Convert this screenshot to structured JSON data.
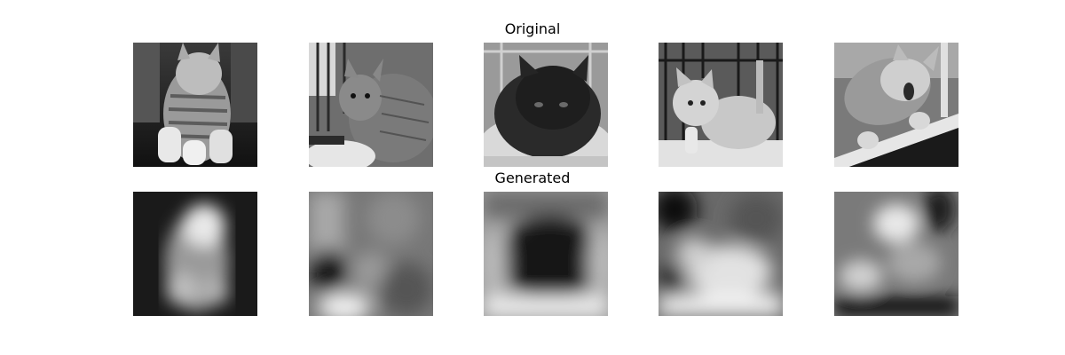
{
  "figure": {
    "rows": [
      {
        "title": "Original",
        "images": [
          {
            "label": "cat sitting upright, grayscale"
          },
          {
            "label": "tabby cat on a cushion, grayscale"
          },
          {
            "label": "black cat lying in a bed, grayscale"
          },
          {
            "label": "white kitten in a cage, grayscale"
          },
          {
            "label": "cat reaching over a ledge, grayscale"
          }
        ]
      },
      {
        "title": "Generated",
        "images": [
          {
            "label": "blurry reconstruction of cat 1"
          },
          {
            "label": "blurry reconstruction of cat 2"
          },
          {
            "label": "blurry reconstruction of cat 3"
          },
          {
            "label": "blurry reconstruction of cat 4"
          },
          {
            "label": "blurry reconstruction of cat 5"
          }
        ]
      }
    ]
  }
}
